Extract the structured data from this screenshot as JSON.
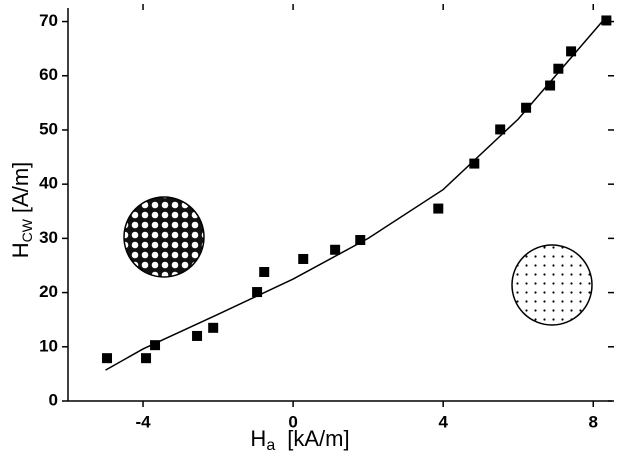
{
  "chart_data": {
    "type": "scatter",
    "xlabel": {
      "symbol": "H",
      "subscript": "a",
      "unit": "[kA/m]"
    },
    "ylabel": {
      "symbol": "H",
      "subscript": "CW",
      "unit": "[A/m]"
    },
    "xlim": [
      -6,
      8.5
    ],
    "ylim": [
      0,
      72.5
    ],
    "xticks": [
      -4,
      0,
      4,
      8
    ],
    "yticks": [
      0,
      10,
      20,
      30,
      40,
      50,
      60,
      70
    ],
    "color": "#000000",
    "x": [
      -4.96,
      -3.92,
      -3.68,
      -2.56,
      -2.13,
      -0.96,
      -0.77,
      0.27,
      1.12,
      1.79,
      3.87,
      4.83,
      5.52,
      6.21,
      6.85,
      7.07,
      7.41,
      8.35
    ],
    "values": [
      7.9,
      7.9,
      10.3,
      12.0,
      13.5,
      20.1,
      23.8,
      26.2,
      27.9,
      29.7,
      35.5,
      43.8,
      50.1,
      54.1,
      58.2,
      61.3,
      64.5,
      70.2
    ],
    "fit": {
      "x": [
        -5,
        -4,
        -2,
        0,
        2,
        4,
        6,
        8.3
      ],
      "values": [
        5.7,
        9.6,
        16,
        22.5,
        30,
        39,
        52,
        70.5
      ]
    }
  }
}
